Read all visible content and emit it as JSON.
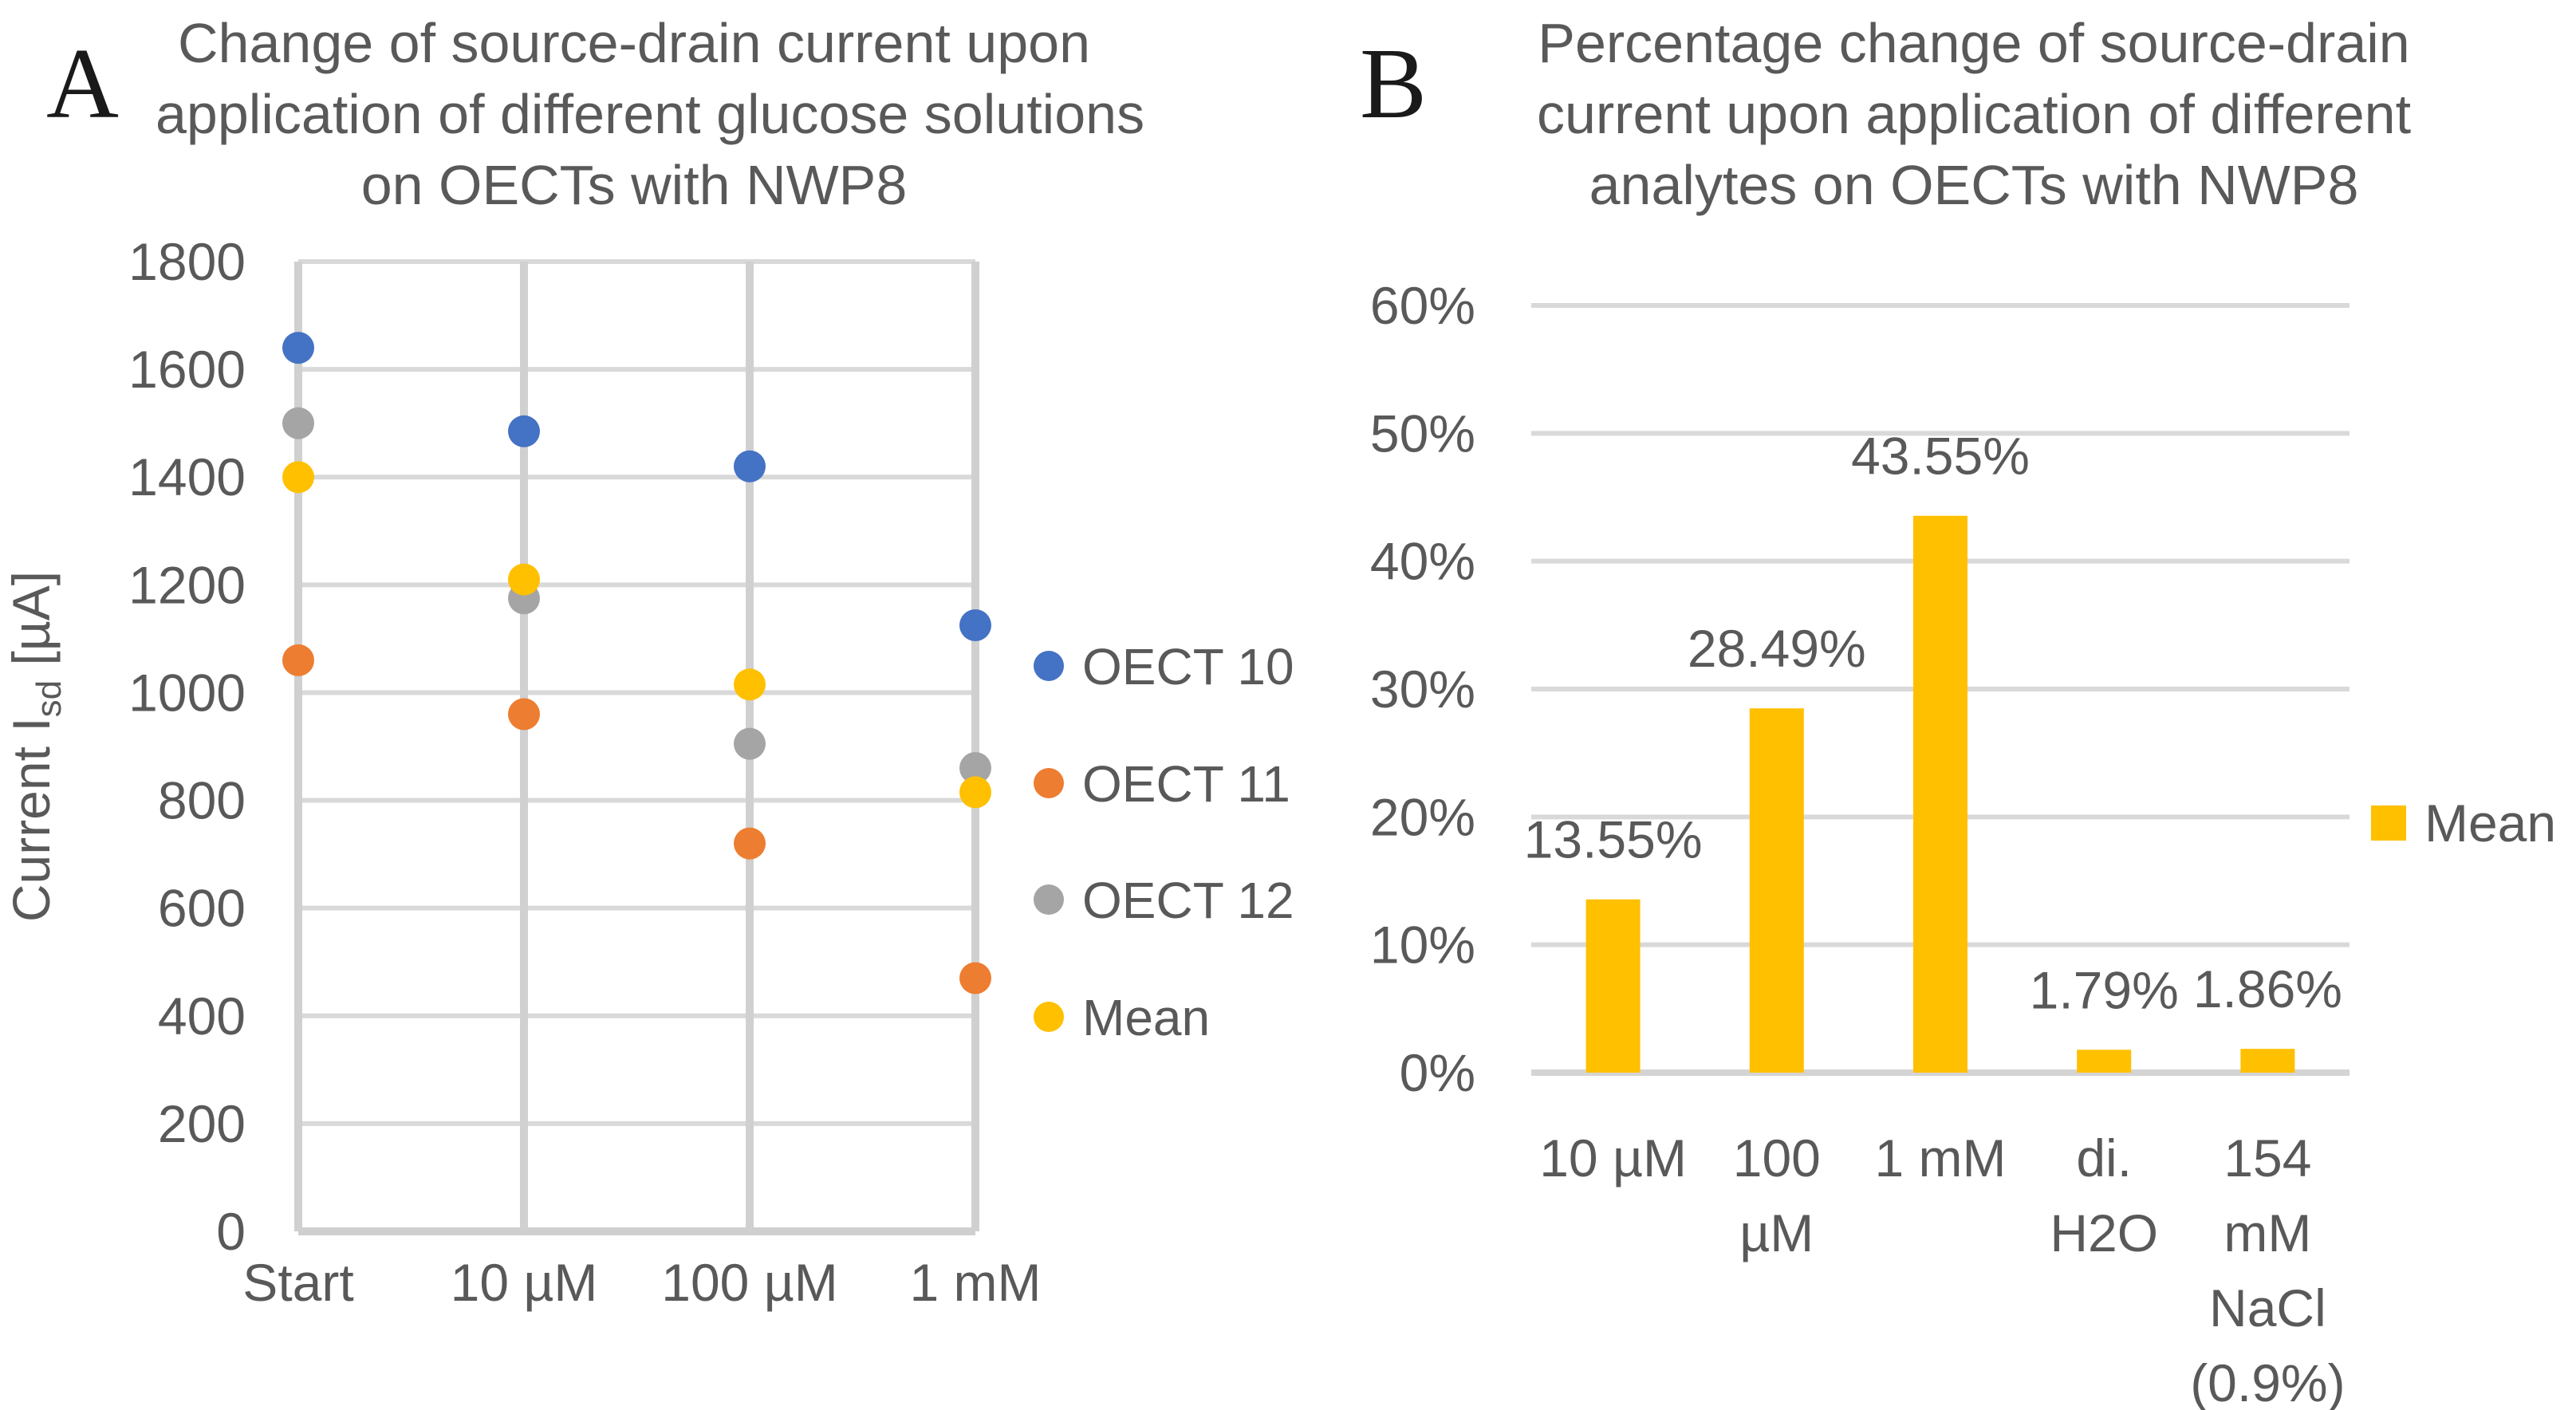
{
  "panel_a": {
    "label": "A",
    "title_lines": [
      "Change of source-drain current upon",
      "application of different glucose solutions",
      "on OECTs with NWP8"
    ]
  },
  "panel_b": {
    "label": "B",
    "title_lines": [
      "Percentage change of source-drain",
      "current upon application of different",
      "analytes on OECTs with NWP8"
    ]
  },
  "chart_data": [
    {
      "id": "oect-current-scatter",
      "type": "scatter",
      "title": "Change of source-drain current upon application of different glucose solutions on OECTs with NWP8",
      "categories": [
        "Start",
        "10 µM",
        "100 µM",
        "1 mM"
      ],
      "series": [
        {
          "name": "OECT 10",
          "color": "#4472C4",
          "values": [
            1640,
            1485,
            1420,
            1125
          ]
        },
        {
          "name": "OECT 11",
          "color": "#ED7D31",
          "values": [
            1060,
            960,
            720,
            470
          ]
        },
        {
          "name": "OECT 12",
          "color": "#A5A5A5",
          "values": [
            1500,
            1175,
            905,
            860
          ]
        },
        {
          "name": "Mean",
          "color": "#FFC000",
          "values": [
            1400,
            1210,
            1015,
            815
          ]
        }
      ],
      "ylabel_parts": {
        "pre": "Current I",
        "sub": "sd",
        "post": " [µA]"
      },
      "ylim": [
        0,
        1800
      ],
      "ytick_step": 200,
      "grid": true,
      "legend_position": "right",
      "marker": "circle"
    },
    {
      "id": "percentage-change-bar",
      "type": "bar",
      "title": "Percentage change of source-drain current upon application of different analytes on OECTs with NWP8",
      "categories": [
        "10 µM",
        "100 µM",
        "1 mM",
        "di. H2O",
        "154 mM NaCl (0.9%)"
      ],
      "category_lines": [
        [
          "10 µM"
        ],
        [
          "100",
          "µM"
        ],
        [
          "1 mM"
        ],
        [
          "di.",
          "H2O"
        ],
        [
          "154",
          "mM",
          "NaCl",
          "(0.9%)"
        ]
      ],
      "series_name": "Mean",
      "values": [
        13.55,
        28.49,
        43.55,
        1.79,
        1.86
      ],
      "value_labels": [
        "13.55%",
        "28.49%",
        "43.55%",
        "1.79%",
        "1.86%"
      ],
      "bar_color": "#FFC000",
      "ylim": [
        0,
        60
      ],
      "ytick_step": 10,
      "ytick_labels": [
        "0%",
        "10%",
        "20%",
        "30%",
        "40%",
        "50%",
        "60%"
      ],
      "grid": true,
      "legend_position": "right",
      "marker": "square"
    }
  ],
  "colors": {
    "text": "#595959",
    "value_label": "#404040",
    "gridline": "#D9D9D9",
    "gridline_major_vertical": "#D0D0D0",
    "axis_line": "#CFCFCF",
    "background": "#FFFFFF"
  }
}
